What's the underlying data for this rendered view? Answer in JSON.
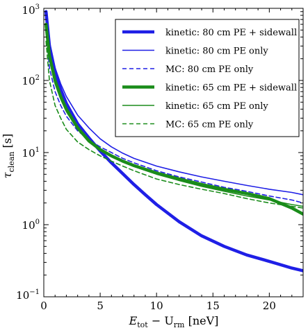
{
  "chart_data": {
    "type": "line",
    "title": "",
    "xlabel": "E_tot − U_rm [neV]",
    "xlabel_parts": {
      "main": "E",
      "sub1": "tot",
      "mid": " − U",
      "sub2": "rm",
      "unit": " [neV]"
    },
    "ylabel": "τ_clean [s]",
    "ylabel_parts": {
      "main": "τ",
      "sub": "clean",
      "unit": " [s]"
    },
    "xlim": [
      0,
      23
    ],
    "ylim": [
      0.1,
      1000
    ],
    "yscale": "log",
    "xticks": [
      0,
      5,
      10,
      15,
      20
    ],
    "xtick_labels": [
      "0",
      "5",
      "10",
      "15",
      "20"
    ],
    "yticks": [
      0.1,
      1,
      10,
      100,
      1000
    ],
    "ytick_labels": [
      {
        "base": "10",
        "exp": "−1"
      },
      {
        "base": "10",
        "exp": "0"
      },
      {
        "base": "10",
        "exp": "1"
      },
      {
        "base": "10",
        "exp": "2"
      },
      {
        "base": "10",
        "exp": "3"
      }
    ],
    "grid": false,
    "legend_position": "top-right",
    "series": [
      {
        "name": "kinetic: 80 cm PE + sidewall",
        "color": "#1f1fe6",
        "style": "thick",
        "x": [
          0.2,
          0.5,
          1,
          1.5,
          2,
          3,
          4,
          5,
          6,
          7,
          8,
          9,
          10,
          12,
          14,
          16,
          18,
          20,
          22,
          23
        ],
        "y": [
          900,
          300,
          130,
          75,
          48,
          25,
          16,
          10.5,
          7.2,
          5.1,
          3.6,
          2.6,
          1.9,
          1.1,
          0.7,
          0.5,
          0.38,
          0.31,
          0.25,
          0.23
        ]
      },
      {
        "name": "kinetic: 80 cm PE only",
        "color": "#1f1fe6",
        "style": "thin",
        "x": [
          0.2,
          0.5,
          1,
          1.5,
          2,
          3,
          4,
          5,
          6,
          7,
          8,
          10,
          12,
          14,
          16,
          18,
          20,
          22,
          23
        ],
        "y": [
          900,
          350,
          150,
          90,
          60,
          33,
          22,
          15.5,
          12,
          9.8,
          8.3,
          6.5,
          5.4,
          4.6,
          4.0,
          3.5,
          3.1,
          2.8,
          2.6
        ]
      },
      {
        "name": "MC: 80 cm PE only",
        "color": "#1f1fe6",
        "style": "dashed",
        "x": [
          0.2,
          0.5,
          1,
          1.5,
          2,
          3,
          4,
          5,
          6,
          7,
          8,
          10,
          12,
          14,
          16,
          18,
          20,
          22,
          23
        ],
        "y": [
          500,
          150,
          70,
          45,
          32,
          20,
          15,
          12,
          10,
          8.3,
          7.2,
          5.6,
          4.6,
          3.9,
          3.3,
          2.9,
          2.5,
          2.2,
          2.0
        ]
      },
      {
        "name": "kinetic: 65 cm PE + sidewall",
        "color": "#1a8c1a",
        "style": "thick",
        "x": [
          0.2,
          0.5,
          1,
          1.5,
          2,
          3,
          4,
          5,
          6,
          7,
          8,
          10,
          12,
          14,
          16,
          18,
          20,
          22,
          23
        ],
        "y": [
          600,
          220,
          100,
          60,
          40,
          22,
          14.5,
          11,
          9,
          7.6,
          6.6,
          5.2,
          4.3,
          3.6,
          3.1,
          2.7,
          2.3,
          1.7,
          1.4
        ]
      },
      {
        "name": "kinetic: 65 cm PE only",
        "color": "#1a8c1a",
        "style": "thin",
        "x": [
          0.2,
          0.5,
          1,
          1.5,
          2,
          3,
          4,
          5,
          6,
          7,
          8,
          10,
          12,
          14,
          16,
          18,
          20,
          22,
          23
        ],
        "y": [
          550,
          200,
          90,
          55,
          37,
          21,
          14,
          10.8,
          8.8,
          7.4,
          6.4,
          5.0,
          4.1,
          3.4,
          2.9,
          2.5,
          2.2,
          1.9,
          1.8
        ]
      },
      {
        "name": "MC: 65 cm PE only",
        "color": "#1a8c1a",
        "style": "dashed",
        "x": [
          0.2,
          0.5,
          1,
          1.5,
          2,
          3,
          4,
          5,
          6,
          7,
          8,
          10,
          12,
          14,
          16,
          18,
          20,
          22,
          23
        ],
        "y": [
          350,
          100,
          45,
          30,
          21,
          14,
          11,
          9,
          7.6,
          6.5,
          5.6,
          4.3,
          3.6,
          3.1,
          2.7,
          2.3,
          2.0,
          1.8,
          1.7
        ]
      }
    ]
  }
}
